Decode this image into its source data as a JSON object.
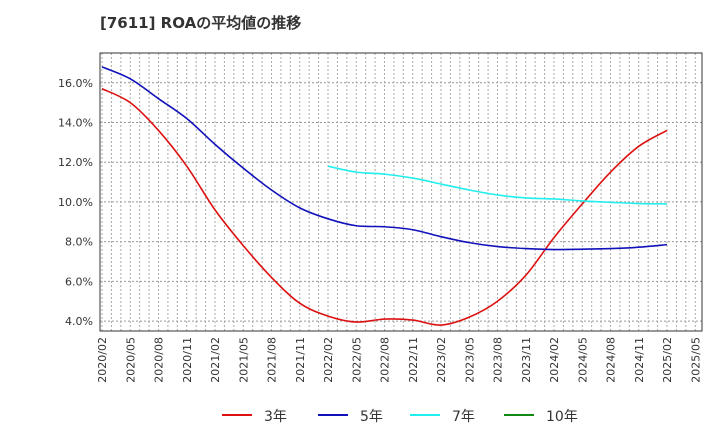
{
  "title": "[7611]  ROAの平均値の推移",
  "chart_data": {
    "type": "line",
    "x": [
      "2020/02",
      "2020/05",
      "2020/08",
      "2020/11",
      "2021/02",
      "2021/05",
      "2021/08",
      "2021/11",
      "2022/02",
      "2022/05",
      "2022/08",
      "2022/11",
      "2023/02",
      "2023/05",
      "2023/08",
      "2023/11",
      "2024/02",
      "2024/05",
      "2024/08",
      "2024/11",
      "2025/02"
    ],
    "x_ticks": [
      "2020/02",
      "2020/05",
      "2020/08",
      "2020/11",
      "2021/02",
      "2021/05",
      "2021/08",
      "2021/11",
      "2022/02",
      "2022/05",
      "2022/08",
      "2022/11",
      "2023/02",
      "2023/05",
      "2023/08",
      "2023/11",
      "2024/02",
      "2024/05",
      "2024/08",
      "2024/11",
      "2025/02",
      "2025/05"
    ],
    "ylim": [
      3.5,
      17.5
    ],
    "y_ticks": [
      4,
      6,
      8,
      10,
      12,
      14,
      16
    ],
    "y_tick_labels": [
      "4.0%",
      "6.0%",
      "8.0%",
      "10.0%",
      "12.0%",
      "14.0%",
      "16.0%"
    ],
    "grid": true,
    "legend_position": "bottom",
    "series": [
      {
        "name": "3年",
        "color": "#dd1111",
        "values": [
          15.7,
          15.0,
          13.6,
          11.8,
          9.6,
          7.8,
          6.2,
          4.9,
          4.25,
          3.95,
          4.1,
          4.05,
          3.8,
          4.2,
          5.0,
          6.3,
          8.2,
          9.9,
          11.5,
          12.8,
          13.6
        ]
      },
      {
        "name": "5年",
        "color": "#1111bb",
        "values": [
          16.8,
          16.2,
          15.2,
          14.2,
          12.9,
          11.7,
          10.6,
          9.7,
          9.15,
          8.8,
          8.75,
          8.6,
          8.25,
          7.95,
          7.75,
          7.65,
          7.6,
          7.62,
          7.65,
          7.72,
          7.85
        ]
      },
      {
        "name": "7年",
        "color": "#22eeee",
        "values": [
          null,
          null,
          null,
          null,
          null,
          null,
          null,
          null,
          11.8,
          11.5,
          11.4,
          11.2,
          10.9,
          10.6,
          10.35,
          10.2,
          10.15,
          10.05,
          9.98,
          9.92,
          9.9
        ]
      },
      {
        "name": "10年",
        "color": "#118811",
        "values": [
          null,
          null,
          null,
          null,
          null,
          null,
          null,
          null,
          null,
          null,
          null,
          null,
          null,
          null,
          null,
          null,
          null,
          null,
          null,
          null,
          null
        ]
      }
    ]
  }
}
